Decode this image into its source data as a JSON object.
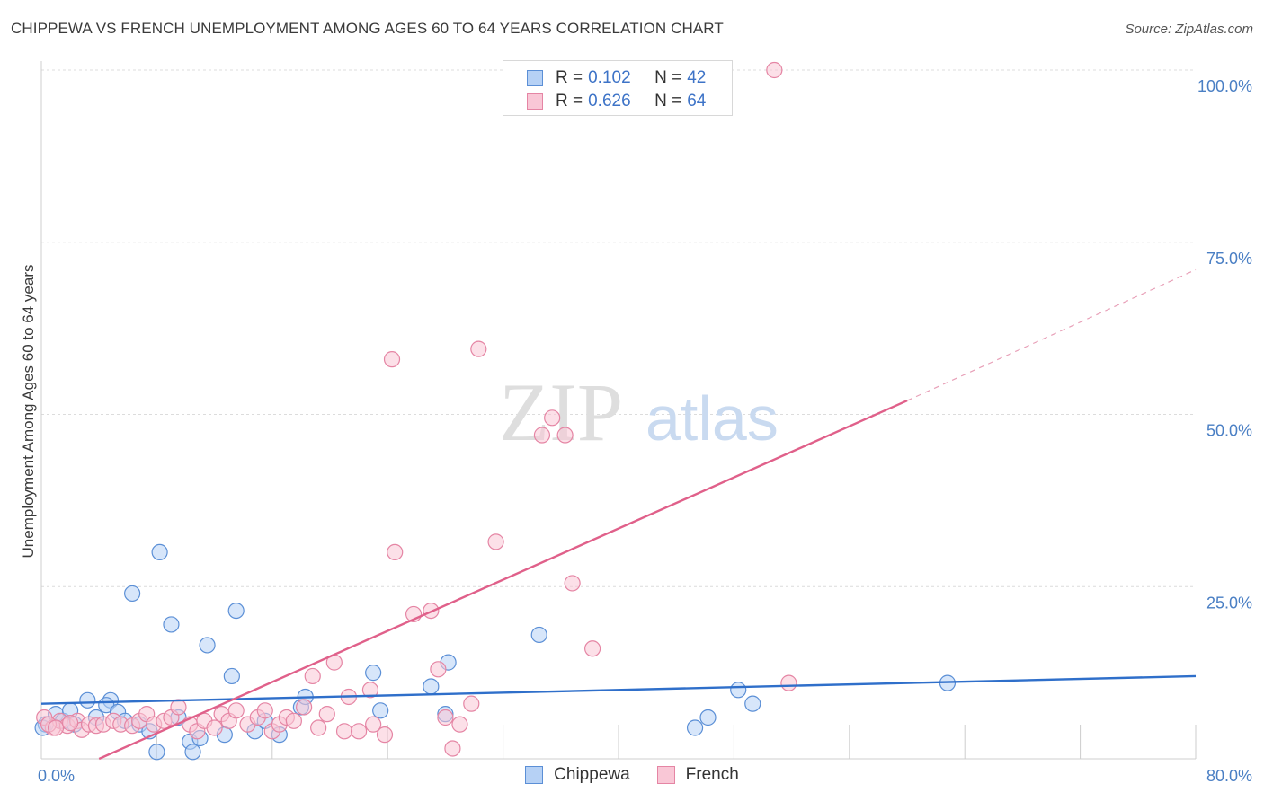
{
  "title": "CHIPPEWA VS FRENCH UNEMPLOYMENT AMONG AGES 60 TO 64 YEARS CORRELATION CHART",
  "source": "Source: ZipAtlas.com",
  "watermark": {
    "part1": "ZIP",
    "part2": "atlas"
  },
  "legend": {
    "rows": [
      {
        "r_label": "R = ",
        "r_value": "0.102",
        "n_label": "N = ",
        "n_value": "42",
        "color_fill": "#a9c8f2",
        "color_stroke": "#5b8fd6"
      },
      {
        "r_label": "R = ",
        "r_value": "0.626",
        "n_label": "N = ",
        "n_value": "64",
        "color_fill": "#f7b9cc",
        "color_stroke": "#e585a4"
      }
    ]
  },
  "bottom_legend": [
    {
      "label": "Chippewa",
      "fill": "#b6d1f5",
      "stroke": "#5b8fd6"
    },
    {
      "label": "French",
      "fill": "#f9c7d6",
      "stroke": "#e585a4"
    }
  ],
  "chart_data": {
    "type": "scatter",
    "title": "CHIPPEWA VS FRENCH UNEMPLOYMENT AMONG AGES 60 TO 64 YEARS CORRELATION CHART",
    "xlabel": "",
    "ylabel": "Unemployment Among Ages 60 to 64 years",
    "xlim": [
      0,
      80
    ],
    "ylim": [
      0,
      100
    ],
    "x_tick_labels": [
      "0.0%",
      "80.0%"
    ],
    "y_ticks": [
      25,
      50,
      75,
      100
    ],
    "y_tick_labels": [
      "25.0%",
      "50.0%",
      "75.0%",
      "100.0%"
    ],
    "grid": true,
    "series": [
      {
        "name": "Chippewa",
        "color": "#5b8fd6",
        "fill": "#b6d1f5",
        "points": [
          [
            0.3,
            5.0
          ],
          [
            1.0,
            6.5
          ],
          [
            1.5,
            5.5
          ],
          [
            2.0,
            7.0
          ],
          [
            2.3,
            5.0
          ],
          [
            3.2,
            8.5
          ],
          [
            3.8,
            6.0
          ],
          [
            4.8,
            8.5
          ],
          [
            4.5,
            7.8
          ],
          [
            5.3,
            6.8
          ],
          [
            5.8,
            5.5
          ],
          [
            6.3,
            24.0
          ],
          [
            6.8,
            5.0
          ],
          [
            7.5,
            4.0
          ],
          [
            8.0,
            1.0
          ],
          [
            8.2,
            30.0
          ],
          [
            9.0,
            19.5
          ],
          [
            9.5,
            6.0
          ],
          [
            10.3,
            2.5
          ],
          [
            10.5,
            1.0
          ],
          [
            11.0,
            3.0
          ],
          [
            11.5,
            16.5
          ],
          [
            12.7,
            3.5
          ],
          [
            13.2,
            12.0
          ],
          [
            13.5,
            21.5
          ],
          [
            14.8,
            4.0
          ],
          [
            15.5,
            5.5
          ],
          [
            16.5,
            3.5
          ],
          [
            18.0,
            7.5
          ],
          [
            18.3,
            9.0
          ],
          [
            23.0,
            12.5
          ],
          [
            23.5,
            7.0
          ],
          [
            27.0,
            10.5
          ],
          [
            28.0,
            6.5
          ],
          [
            28.2,
            14.0
          ],
          [
            34.5,
            18.0
          ],
          [
            45.3,
            4.5
          ],
          [
            46.2,
            6.0
          ],
          [
            48.3,
            10.0
          ],
          [
            49.3,
            8.0
          ],
          [
            62.8,
            11.0
          ],
          [
            0.1,
            4.5
          ]
        ]
      },
      {
        "name": "French",
        "color": "#e585a4",
        "fill": "#f9c7d6",
        "points": [
          [
            0.2,
            6.0
          ],
          [
            0.8,
            4.5
          ],
          [
            1.3,
            5.5
          ],
          [
            1.8,
            4.8
          ],
          [
            2.5,
            5.5
          ],
          [
            2.8,
            4.2
          ],
          [
            3.3,
            5.0
          ],
          [
            3.8,
            4.8
          ],
          [
            4.3,
            5.0
          ],
          [
            5.0,
            5.5
          ],
          [
            5.5,
            5.0
          ],
          [
            6.3,
            4.8
          ],
          [
            6.8,
            5.5
          ],
          [
            7.3,
            6.5
          ],
          [
            7.8,
            5.0
          ],
          [
            8.5,
            5.5
          ],
          [
            9.0,
            6.0
          ],
          [
            9.5,
            7.5
          ],
          [
            10.3,
            5.0
          ],
          [
            10.8,
            4.0
          ],
          [
            11.3,
            5.5
          ],
          [
            12.0,
            4.5
          ],
          [
            12.5,
            6.5
          ],
          [
            13.0,
            5.5
          ],
          [
            13.5,
            7.0
          ],
          [
            14.3,
            5.0
          ],
          [
            15.0,
            6.0
          ],
          [
            15.5,
            7.0
          ],
          [
            16.0,
            4.0
          ],
          [
            16.5,
            5.0
          ],
          [
            17.0,
            6.0
          ],
          [
            17.5,
            5.5
          ],
          [
            18.2,
            7.5
          ],
          [
            18.8,
            12.0
          ],
          [
            19.2,
            4.5
          ],
          [
            19.8,
            6.5
          ],
          [
            20.3,
            14.0
          ],
          [
            21.0,
            4.0
          ],
          [
            21.3,
            9.0
          ],
          [
            22.0,
            4.0
          ],
          [
            22.8,
            10.0
          ],
          [
            23.0,
            5.0
          ],
          [
            23.8,
            3.5
          ],
          [
            24.3,
            58.0
          ],
          [
            24.5,
            30.0
          ],
          [
            25.8,
            21.0
          ],
          [
            27.0,
            21.5
          ],
          [
            28.0,
            6.0
          ],
          [
            28.5,
            1.5
          ],
          [
            29.0,
            5.0
          ],
          [
            29.8,
            8.0
          ],
          [
            30.3,
            59.5
          ],
          [
            31.5,
            31.5
          ],
          [
            34.7,
            47.0
          ],
          [
            35.4,
            49.5
          ],
          [
            36.3,
            47.0
          ],
          [
            36.8,
            25.5
          ],
          [
            38.2,
            16.0
          ],
          [
            50.8,
            100.0
          ],
          [
            51.8,
            11.0
          ],
          [
            0.5,
            5.0
          ],
          [
            1.0,
            4.5
          ],
          [
            2.0,
            5.2
          ],
          [
            27.5,
            13.0
          ]
        ]
      }
    ],
    "trendlines": [
      {
        "series": "Chippewa",
        "x": [
          0,
          80
        ],
        "y": [
          8.0,
          12.0
        ],
        "style": "solid"
      },
      {
        "series": "French",
        "x": [
          4.0,
          60.0
        ],
        "y": [
          0.0,
          52.0
        ],
        "style": "solid",
        "dashed_extension_to": [
          80,
          71.0
        ]
      }
    ]
  }
}
